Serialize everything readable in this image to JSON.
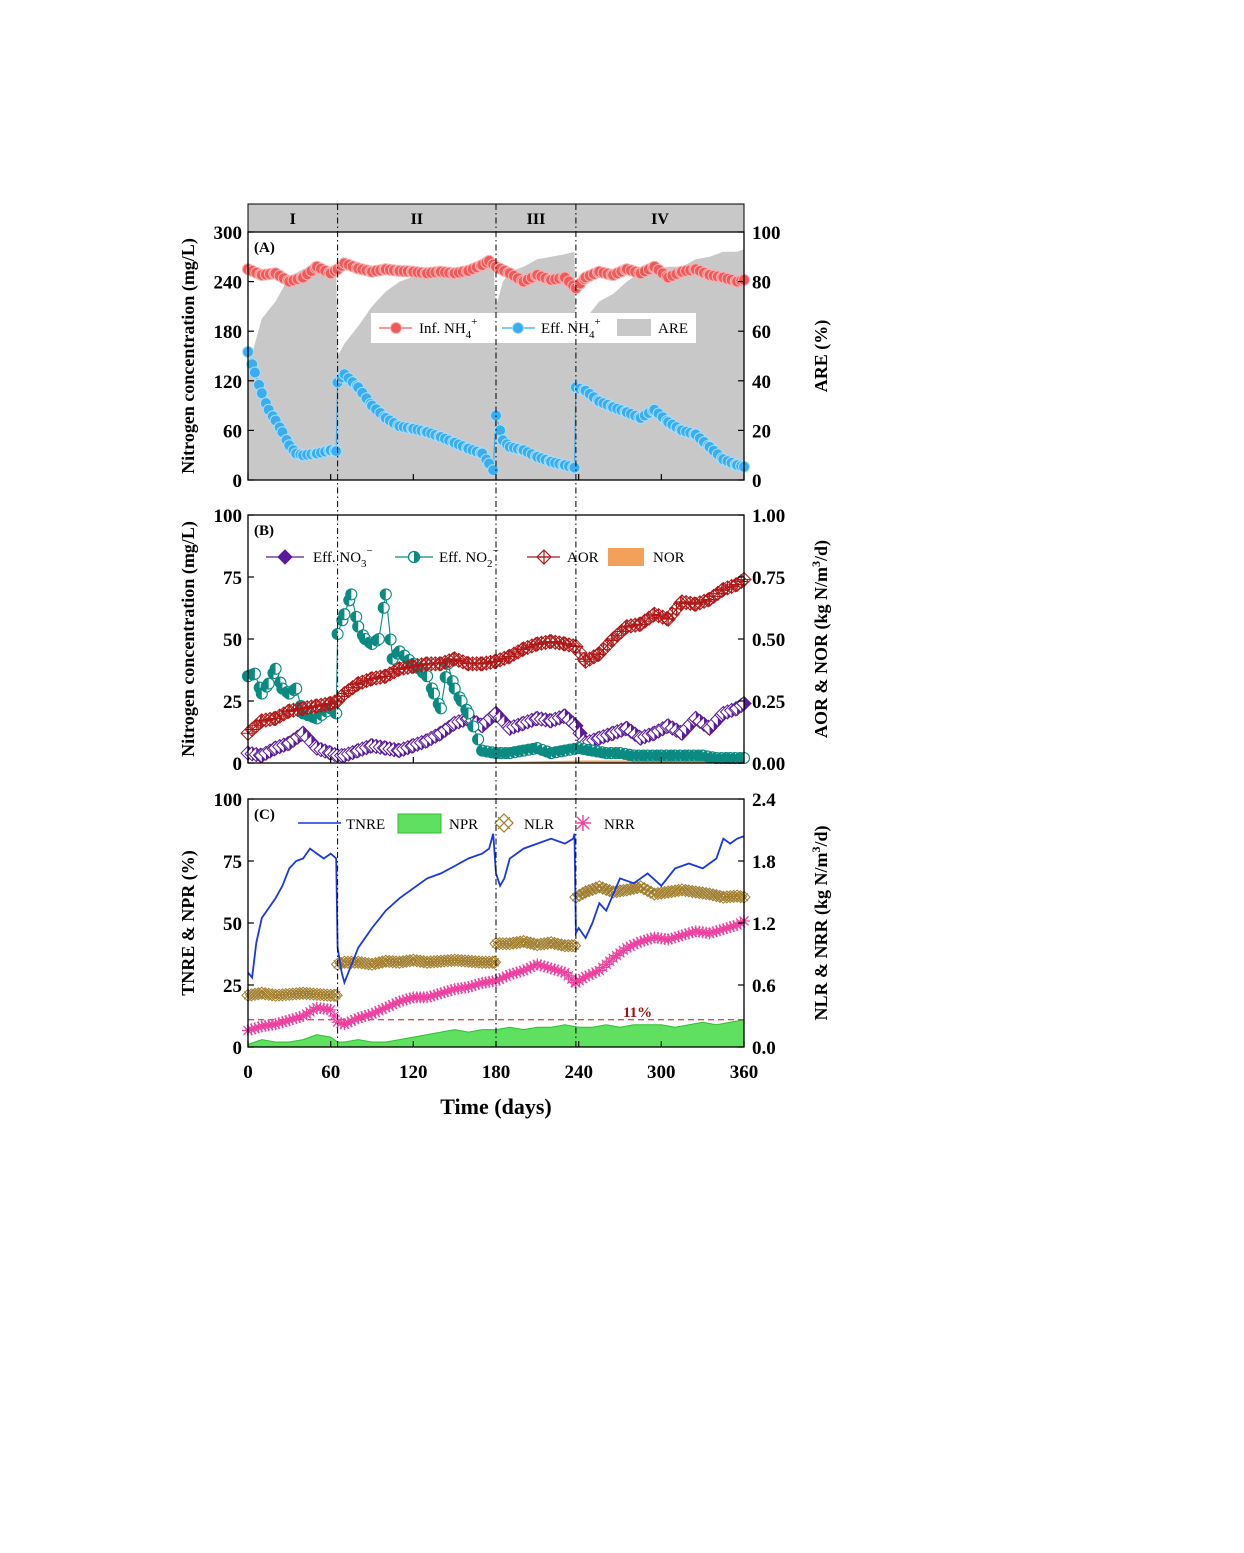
{
  "phases": [
    "I",
    "II",
    "III",
    "IV"
  ],
  "phase_bounds": [
    0,
    65,
    180,
    238,
    360
  ],
  "xaxis": {
    "label": "Time (days)",
    "ticks": [
      "0",
      "60",
      "120",
      "180",
      "240",
      "300",
      "360"
    ],
    "range": [
      0,
      360
    ]
  },
  "colors": {
    "inf_nh4": "#f05a5a",
    "eff_nh4": "#38aef0",
    "are": "#c8c8c8",
    "eff_no3": "#5a1a9a",
    "eff_no2": "#0a8a80",
    "aor": "#b01818",
    "nor": "#f2a05a",
    "tnre": "#1a38e0",
    "npr": "#2ec02e",
    "nlr": "#a07c2a",
    "nrr": "#ee40a0"
  },
  "chart_data": [
    {
      "type": "line",
      "panel": "(A)",
      "ylabel": "Nitrogen concentration (mg/L)",
      "ylabel2": "ARE (%)",
      "ylim": [
        0,
        300
      ],
      "y2lim": [
        0,
        100
      ],
      "yticks": [
        "0",
        "60",
        "120",
        "180",
        "240",
        "300"
      ],
      "y2ticks": [
        "0",
        "20",
        "40",
        "60",
        "80",
        "100"
      ],
      "legend": [
        "Inf. NH",
        "Eff. NH",
        "ARE"
      ],
      "series": [
        {
          "name": "Inf. NH4+",
          "x": [
            0,
            10,
            20,
            30,
            40,
            50,
            60,
            65,
            70,
            80,
            90,
            100,
            110,
            120,
            130,
            140,
            150,
            160,
            170,
            175,
            180,
            190,
            200,
            210,
            220,
            230,
            238,
            245,
            255,
            265,
            275,
            285,
            295,
            305,
            315,
            325,
            335,
            345,
            355,
            360
          ],
          "values": [
            255,
            248,
            250,
            240,
            245,
            258,
            250,
            255,
            262,
            256,
            252,
            255,
            253,
            252,
            250,
            252,
            250,
            253,
            260,
            265,
            258,
            250,
            240,
            248,
            242,
            245,
            232,
            245,
            252,
            248,
            255,
            250,
            258,
            245,
            252,
            255,
            248,
            245,
            240,
            242
          ]
        },
        {
          "name": "Eff. NH4+",
          "x": [
            0,
            5,
            10,
            15,
            20,
            25,
            30,
            35,
            40,
            50,
            60,
            64,
            65,
            70,
            80,
            90,
            100,
            110,
            120,
            130,
            140,
            150,
            160,
            170,
            175,
            178,
            180,
            185,
            190,
            200,
            210,
            220,
            230,
            237,
            238,
            245,
            255,
            265,
            275,
            285,
            295,
            305,
            315,
            325,
            335,
            345,
            355,
            360
          ],
          "values": [
            155,
            130,
            105,
            85,
            72,
            58,
            42,
            32,
            30,
            32,
            36,
            35,
            118,
            128,
            112,
            90,
            75,
            65,
            62,
            58,
            52,
            45,
            38,
            32,
            20,
            12,
            78,
            48,
            40,
            36,
            28,
            22,
            18,
            15,
            112,
            108,
            95,
            88,
            82,
            75,
            85,
            70,
            60,
            55,
            40,
            25,
            18,
            16
          ]
        },
        {
          "name": "ARE",
          "x": [
            0,
            10,
            20,
            30,
            40,
            50,
            60,
            64,
            65,
            70,
            80,
            90,
            100,
            110,
            120,
            130,
            140,
            150,
            160,
            170,
            178,
            180,
            185,
            190,
            200,
            210,
            220,
            230,
            237,
            238,
            245,
            255,
            265,
            275,
            285,
            295,
            305,
            315,
            325,
            335,
            345,
            355,
            360
          ],
          "values": [
            45,
            65,
            72,
            82,
            85,
            87,
            86,
            86,
            50,
            55,
            62,
            70,
            76,
            80,
            82,
            83,
            84,
            84,
            86,
            87,
            88,
            70,
            80,
            84,
            86,
            89,
            90,
            91,
            92,
            56,
            65,
            72,
            75,
            80,
            84,
            85,
            86,
            86,
            89,
            90,
            92,
            92,
            93
          ]
        }
      ]
    },
    {
      "type": "line",
      "panel": "(B)",
      "ylabel": "Nitrogen concentration (mg/L)",
      "ylabel2": "AOR & NOR (kg N/m3/d)",
      "ylim": [
        0,
        100
      ],
      "y2lim": [
        0,
        1.0
      ],
      "yticks": [
        "0",
        "25",
        "50",
        "75",
        "100"
      ],
      "y2ticks": [
        "0.00",
        "0.25",
        "0.50",
        "0.75",
        "1.00"
      ],
      "legend": [
        "Eff. NO",
        "Eff. NO",
        "AOR",
        "NOR"
      ],
      "series": [
        {
          "name": "Eff. NO3-",
          "x": [
            0,
            10,
            20,
            30,
            40,
            50,
            60,
            65,
            70,
            80,
            90,
            100,
            110,
            120,
            130,
            140,
            150,
            160,
            170,
            180,
            190,
            200,
            210,
            220,
            230,
            238,
            245,
            255,
            265,
            275,
            285,
            295,
            305,
            315,
            325,
            335,
            345,
            355,
            360
          ],
          "values": [
            4,
            3,
            6,
            8,
            12,
            6,
            4,
            3,
            3,
            5,
            7,
            6,
            5,
            7,
            9,
            12,
            16,
            18,
            15,
            20,
            14,
            16,
            18,
            17,
            19,
            15,
            8,
            10,
            12,
            14,
            10,
            12,
            15,
            12,
            18,
            14,
            20,
            22,
            24
          ]
        },
        {
          "name": "Eff. NO2-",
          "x": [
            0,
            5,
            10,
            15,
            20,
            25,
            30,
            35,
            40,
            50,
            60,
            64,
            65,
            70,
            75,
            80,
            85,
            90,
            95,
            100,
            105,
            110,
            120,
            130,
            135,
            140,
            145,
            150,
            155,
            160,
            170,
            180,
            190,
            200,
            210,
            220,
            230,
            240,
            250,
            260,
            270,
            280,
            290,
            300,
            310,
            320,
            330,
            340,
            350,
            360
          ],
          "values": [
            35,
            36,
            28,
            32,
            38,
            30,
            28,
            30,
            20,
            18,
            22,
            20,
            52,
            60,
            68,
            55,
            50,
            48,
            50,
            68,
            42,
            45,
            40,
            35,
            28,
            22,
            40,
            30,
            25,
            20,
            5,
            4,
            4,
            5,
            6,
            4,
            5,
            6,
            5,
            4,
            4,
            3,
            3,
            3,
            3,
            3,
            3,
            2,
            2,
            2
          ]
        },
        {
          "name": "AOR",
          "x": [
            0,
            10,
            20,
            30,
            40,
            50,
            60,
            65,
            70,
            80,
            90,
            100,
            110,
            120,
            130,
            140,
            150,
            160,
            170,
            180,
            190,
            200,
            210,
            220,
            230,
            238,
            245,
            255,
            265,
            275,
            285,
            295,
            305,
            315,
            325,
            335,
            345,
            355,
            360
          ],
          "values": [
            0.12,
            0.17,
            0.18,
            0.21,
            0.22,
            0.23,
            0.24,
            0.25,
            0.28,
            0.32,
            0.34,
            0.35,
            0.38,
            0.39,
            0.4,
            0.4,
            0.42,
            0.4,
            0.4,
            0.41,
            0.43,
            0.46,
            0.48,
            0.49,
            0.48,
            0.47,
            0.41,
            0.44,
            0.5,
            0.55,
            0.56,
            0.6,
            0.58,
            0.65,
            0.64,
            0.66,
            0.7,
            0.72,
            0.74
          ]
        },
        {
          "name": "NOR",
          "x": [
            0,
            60,
            120,
            180,
            240,
            300,
            340,
            350,
            360
          ],
          "values": [
            0.0,
            0.0,
            0.0,
            0.003,
            0.01,
            0.01,
            0.02,
            0.03,
            0.02
          ]
        }
      ]
    },
    {
      "type": "line",
      "panel": "(C)",
      "ylabel": "TNRE & NPR (%)",
      "ylabel2": "NLR & NRR (kg N/m3/d)",
      "ylim": [
        0,
        100
      ],
      "y2lim": [
        0,
        2.4
      ],
      "yticks": [
        "0",
        "25",
        "50",
        "75",
        "100"
      ],
      "y2ticks": [
        "0.0",
        "0.6",
        "1.2",
        "1.8",
        "2.4"
      ],
      "legend": [
        "TNRE",
        "NPR",
        "NLR",
        "NRR"
      ],
      "annotation": "11%",
      "reference_line": 11,
      "series": [
        {
          "name": "TNRE",
          "x": [
            0,
            3,
            6,
            10,
            15,
            20,
            25,
            30,
            35,
            40,
            45,
            50,
            55,
            60,
            64,
            65,
            68,
            70,
            75,
            80,
            90,
            100,
            110,
            120,
            130,
            140,
            150,
            160,
            170,
            175,
            178,
            180,
            183,
            186,
            190,
            200,
            210,
            220,
            230,
            236,
            237,
            238,
            240,
            245,
            250,
            255,
            260,
            270,
            280,
            290,
            300,
            310,
            320,
            330,
            340,
            345,
            350,
            355,
            360
          ],
          "values": [
            30,
            28,
            42,
            52,
            56,
            60,
            65,
            72,
            75,
            76,
            80,
            78,
            76,
            78,
            76,
            40,
            30,
            26,
            33,
            40,
            48,
            55,
            60,
            64,
            68,
            70,
            73,
            76,
            78,
            80,
            86,
            70,
            65,
            68,
            76,
            80,
            82,
            84,
            82,
            84,
            86,
            46,
            48,
            44,
            50,
            58,
            55,
            68,
            66,
            70,
            65,
            72,
            74,
            72,
            76,
            84,
            82,
            84,
            85
          ]
        },
        {
          "name": "NPR",
          "x": [
            0,
            5,
            10,
            20,
            30,
            40,
            50,
            60,
            65,
            70,
            80,
            90,
            100,
            110,
            120,
            130,
            140,
            150,
            160,
            170,
            180,
            190,
            200,
            210,
            220,
            230,
            240,
            250,
            260,
            270,
            280,
            290,
            300,
            310,
            320,
            330,
            340,
            350,
            360
          ],
          "values": [
            1,
            2,
            3,
            2,
            2,
            3,
            5,
            4,
            2,
            2,
            3,
            2,
            2,
            3,
            4,
            5,
            6,
            7,
            6,
            7,
            7,
            8,
            7,
            8,
            8,
            9,
            8,
            8,
            9,
            8,
            9,
            9,
            9,
            8,
            9,
            10,
            9,
            10,
            11
          ]
        },
        {
          "name": "NLR",
          "x": [
            0,
            10,
            20,
            30,
            40,
            50,
            60,
            64,
            65,
            70,
            80,
            90,
            100,
            110,
            120,
            130,
            140,
            150,
            160,
            170,
            179,
            180,
            190,
            200,
            210,
            220,
            230,
            237,
            238,
            245,
            255,
            265,
            275,
            285,
            295,
            305,
            315,
            325,
            335,
            345,
            355,
            360
          ],
          "values": [
            0.5,
            0.52,
            0.5,
            0.51,
            0.52,
            0.51,
            0.5,
            0.5,
            0.8,
            0.82,
            0.82,
            0.8,
            0.83,
            0.82,
            0.84,
            0.82,
            0.83,
            0.84,
            0.83,
            0.82,
            0.82,
            1.0,
            1.0,
            1.02,
            0.99,
            1.01,
            0.98,
            0.98,
            1.45,
            1.5,
            1.55,
            1.5,
            1.52,
            1.55,
            1.48,
            1.5,
            1.52,
            1.5,
            1.48,
            1.45,
            1.46,
            1.45
          ]
        },
        {
          "name": "NRR",
          "x": [
            0,
            10,
            20,
            30,
            40,
            50,
            60,
            65,
            70,
            80,
            90,
            100,
            110,
            120,
            130,
            140,
            150,
            160,
            170,
            180,
            190,
            200,
            210,
            220,
            230,
            238,
            245,
            255,
            265,
            275,
            285,
            295,
            305,
            315,
            325,
            335,
            345,
            355,
            360
          ],
          "values": [
            0.16,
            0.2,
            0.22,
            0.26,
            0.3,
            0.38,
            0.36,
            0.24,
            0.22,
            0.28,
            0.32,
            0.38,
            0.44,
            0.48,
            0.48,
            0.52,
            0.56,
            0.58,
            0.62,
            0.64,
            0.7,
            0.74,
            0.8,
            0.76,
            0.72,
            0.62,
            0.68,
            0.74,
            0.86,
            0.96,
            1.02,
            1.06,
            1.04,
            1.08,
            1.12,
            1.1,
            1.14,
            1.18,
            1.22
          ]
        }
      ]
    }
  ]
}
